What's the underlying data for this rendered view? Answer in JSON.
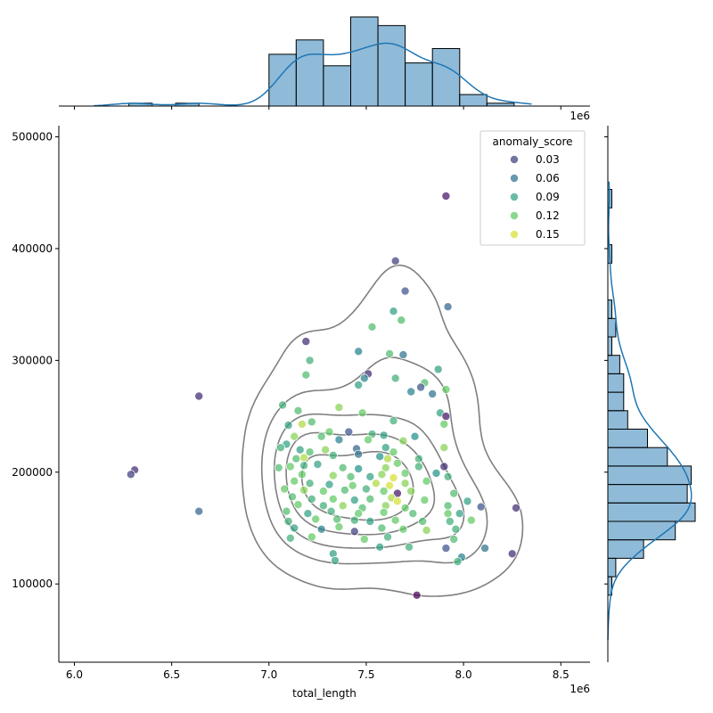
{
  "chart_data": {
    "type": "scatter",
    "title": "",
    "xlabel": "total_length",
    "ylabel": "",
    "x_offset_label": "1e6",
    "xlim": [
      5.92,
      8.65
    ],
    "ylim": [
      30000,
      510000
    ],
    "x_ticks": [
      6.0,
      6.5,
      7.0,
      7.5,
      8.0,
      8.5
    ],
    "x_tick_labels": [
      "6.0",
      "6.5",
      "7.0",
      "7.5",
      "8.0",
      "8.5"
    ],
    "y_ticks": [
      100000,
      200000,
      300000,
      400000,
      500000
    ],
    "y_tick_labels": [
      "100000",
      "200000",
      "300000",
      "400000",
      "500000"
    ],
    "grid": false,
    "legend": {
      "title": "anomaly_score",
      "placement": "top-right",
      "entries": [
        {
          "label": "0.03",
          "value": 0.03,
          "color": "#46327e"
        },
        {
          "label": "0.06",
          "value": 0.06,
          "color": "#365c8d"
        },
        {
          "label": "0.09",
          "value": 0.09,
          "color": "#21918c"
        },
        {
          "label": "0.12",
          "value": 0.12,
          "color": "#3bbb75"
        },
        {
          "label": "0.15",
          "value": 0.15,
          "color": "#d5e21a"
        }
      ]
    },
    "colormap": "viridis",
    "score_range": [
      0.0,
      0.16
    ],
    "points": [
      [
        7.91,
        447000,
        0.01
      ],
      [
        7.65,
        389000,
        0.03
      ],
      [
        7.7,
        362000,
        0.04
      ],
      [
        7.92,
        348000,
        0.05
      ],
      [
        7.64,
        344000,
        0.09
      ],
      [
        7.68,
        336000,
        0.11
      ],
      [
        7.53,
        330000,
        0.11
      ],
      [
        7.19,
        317000,
        0.02
      ],
      [
        7.46,
        308000,
        0.07
      ],
      [
        7.62,
        306000,
        0.11
      ],
      [
        7.69,
        305000,
        0.06
      ],
      [
        7.21,
        300000,
        0.1
      ],
      [
        7.51,
        288000,
        0.02
      ],
      [
        7.87,
        292000,
        0.09
      ],
      [
        7.19,
        287000,
        0.11
      ],
      [
        7.49,
        284000,
        0.07
      ],
      [
        7.65,
        284000,
        0.1
      ],
      [
        7.8,
        280000,
        0.11
      ],
      [
        7.46,
        278000,
        0.09
      ],
      [
        7.78,
        276000,
        0.04
      ],
      [
        7.73,
        272000,
        0.07
      ],
      [
        7.84,
        270000,
        0.06
      ],
      [
        6.64,
        268000,
        0.02
      ],
      [
        7.91,
        274000,
        0.12
      ],
      [
        7.07,
        260000,
        0.1
      ],
      [
        7.36,
        258000,
        0.13
      ],
      [
        7.15,
        255000,
        0.11
      ],
      [
        7.48,
        253000,
        0.12
      ],
      [
        7.88,
        253000,
        0.09
      ],
      [
        7.91,
        250000,
        0.01
      ],
      [
        7.22,
        245000,
        0.11
      ],
      [
        7.64,
        246000,
        0.1
      ],
      [
        7.1,
        242000,
        0.09
      ],
      [
        7.17,
        243000,
        0.14
      ],
      [
        7.9,
        243000,
        0.12
      ],
      [
        7.31,
        236000,
        0.12
      ],
      [
        7.41,
        236000,
        0.04
      ],
      [
        7.53,
        234000,
        0.1
      ],
      [
        7.59,
        233000,
        0.09
      ],
      [
        7.75,
        232000,
        0.08
      ],
      [
        7.13,
        232000,
        0.13
      ],
      [
        7.27,
        232000,
        0.11
      ],
      [
        7.36,
        229000,
        0.07
      ],
      [
        7.51,
        229000,
        0.12
      ],
      [
        7.69,
        228000,
        0.13
      ],
      [
        7.09,
        225000,
        0.09
      ],
      [
        7.06,
        222000,
        0.1
      ],
      [
        7.16,
        220000,
        0.09
      ],
      [
        7.21,
        218000,
        0.11
      ],
      [
        7.29,
        220000,
        0.13
      ],
      [
        7.45,
        221000,
        0.05
      ],
      [
        7.6,
        222000,
        0.09
      ],
      [
        7.64,
        218000,
        0.12
      ],
      [
        7.9,
        222000,
        0.13
      ],
      [
        7.14,
        212000,
        0.11
      ],
      [
        7.18,
        213000,
        0.14
      ],
      [
        7.33,
        215000,
        0.1
      ],
      [
        7.46,
        216000,
        0.06
      ],
      [
        7.57,
        214000,
        0.08
      ],
      [
        7.61,
        212000,
        0.14
      ],
      [
        7.77,
        212000,
        0.1
      ],
      [
        7.11,
        205000,
        0.12
      ],
      [
        7.18,
        206000,
        0.1
      ],
      [
        7.25,
        207000,
        0.09
      ],
      [
        7.38,
        204000,
        0.11
      ],
      [
        7.46,
        203000,
        0.08
      ],
      [
        7.6,
        204000,
        0.13
      ],
      [
        7.66,
        208000,
        0.12
      ],
      [
        7.77,
        205000,
        0.1
      ],
      [
        7.9,
        205000,
        0.02
      ],
      [
        6.31,
        202000,
        0.02
      ],
      [
        6.29,
        198000,
        0.03
      ],
      [
        7.05,
        204000,
        0.11
      ],
      [
        7.17,
        198000,
        0.12
      ],
      [
        7.33,
        197000,
        0.13
      ],
      [
        7.42,
        196000,
        0.11
      ],
      [
        7.52,
        196000,
        0.09
      ],
      [
        7.58,
        198000,
        0.13
      ],
      [
        7.64,
        195000,
        0.15
      ],
      [
        7.7,
        199000,
        0.12
      ],
      [
        7.86,
        199000,
        0.08
      ],
      [
        7.13,
        192000,
        0.12
      ],
      [
        7.21,
        190000,
        0.1
      ],
      [
        7.31,
        189000,
        0.09
      ],
      [
        7.43,
        188000,
        0.12
      ],
      [
        7.55,
        190000,
        0.14
      ],
      [
        7.62,
        188000,
        0.15
      ],
      [
        7.7,
        190000,
        0.13
      ],
      [
        7.81,
        192000,
        0.12
      ],
      [
        7.92,
        196000,
        0.1
      ],
      [
        7.08,
        185000,
        0.12
      ],
      [
        7.18,
        184000,
        0.13
      ],
      [
        7.28,
        183000,
        0.12
      ],
      [
        7.39,
        184000,
        0.11
      ],
      [
        7.5,
        185000,
        0.1
      ],
      [
        7.66,
        181000,
        0.01
      ],
      [
        7.59,
        183000,
        0.12
      ],
      [
        7.73,
        183000,
        0.13
      ],
      [
        7.95,
        181000,
        0.11
      ],
      [
        7.12,
        178000,
        0.11
      ],
      [
        7.22,
        176000,
        0.1
      ],
      [
        7.33,
        176000,
        0.12
      ],
      [
        7.44,
        175000,
        0.09
      ],
      [
        7.52,
        176000,
        0.11
      ],
      [
        7.63,
        177000,
        0.14
      ],
      [
        7.66,
        174000,
        0.15
      ],
      [
        7.8,
        175000,
        0.12
      ],
      [
        8.02,
        174000,
        0.09
      ],
      [
        7.15,
        171000,
        0.12
      ],
      [
        7.28,
        170000,
        0.1
      ],
      [
        7.38,
        170000,
        0.13
      ],
      [
        7.48,
        168000,
        0.11
      ],
      [
        7.6,
        170000,
        0.13
      ],
      [
        7.7,
        168000,
        0.12
      ],
      [
        7.92,
        170000,
        0.11
      ],
      [
        8.09,
        169000,
        0.04
      ],
      [
        8.27,
        168000,
        0.02
      ],
      [
        7.09,
        165000,
        0.11
      ],
      [
        7.2,
        163000,
        0.09
      ],
      [
        7.32,
        165000,
        0.1
      ],
      [
        7.46,
        163000,
        0.12
      ],
      [
        7.59,
        164000,
        0.12
      ],
      [
        7.74,
        163000,
        0.11
      ],
      [
        7.92,
        163000,
        0.12
      ],
      [
        7.98,
        163000,
        0.09
      ],
      [
        6.64,
        165000,
        0.05
      ],
      [
        7.1,
        156000,
        0.1
      ],
      [
        7.24,
        158000,
        0.12
      ],
      [
        7.35,
        158000,
        0.11
      ],
      [
        7.44,
        157000,
        0.1
      ],
      [
        7.52,
        156000,
        0.09
      ],
      [
        7.65,
        157000,
        0.12
      ],
      [
        7.79,
        156000,
        0.11
      ],
      [
        7.93,
        156000,
        0.1
      ],
      [
        8.04,
        157000,
        0.12
      ],
      [
        7.13,
        150000,
        0.09
      ],
      [
        7.27,
        149000,
        0.07
      ],
      [
        7.36,
        151000,
        0.12
      ],
      [
        7.44,
        147000,
        0.03
      ],
      [
        7.58,
        150000,
        0.11
      ],
      [
        7.69,
        149000,
        0.12
      ],
      [
        7.81,
        148000,
        0.13
      ],
      [
        7.96,
        149000,
        0.1
      ],
      [
        7.11,
        141000,
        0.1
      ],
      [
        7.22,
        142000,
        0.12
      ],
      [
        7.49,
        140000,
        0.12
      ],
      [
        7.61,
        142000,
        0.1
      ],
      [
        7.95,
        140000,
        0.11
      ],
      [
        7.57,
        133000,
        0.09
      ],
      [
        7.72,
        133000,
        0.1
      ],
      [
        7.91,
        132000,
        0.04
      ],
      [
        8.11,
        132000,
        0.06
      ],
      [
        7.33,
        127000,
        0.09
      ],
      [
        7.99,
        124000,
        0.07
      ],
      [
        8.25,
        127000,
        0.02
      ],
      [
        7.34,
        121000,
        0.09
      ],
      [
        7.97,
        120000,
        0.1
      ],
      [
        7.76,
        90000,
        0.0
      ]
    ],
    "top_histogram": {
      "bin_edges": [
        6.28,
        6.4,
        6.52,
        6.64,
        6.76,
        6.88,
        7.0,
        7.14,
        7.28,
        7.42,
        7.56,
        7.7,
        7.84,
        7.98,
        8.12,
        8.26
      ],
      "counts": [
        1,
        0,
        1,
        0,
        0,
        0,
        18,
        23,
        14,
        31,
        28,
        15,
        20,
        4,
        1
      ]
    },
    "right_histogram": {
      "bin_edges": [
        90000,
        106500,
        123000,
        139500,
        156000,
        172500,
        189000,
        205500,
        222000,
        238500,
        255000,
        271500,
        288000,
        304500,
        321000,
        337500,
        354000,
        370500,
        387000,
        403500,
        420000,
        436500,
        453000
      ],
      "counts": [
        1,
        2,
        9,
        17,
        22,
        20,
        21,
        15,
        10,
        5,
        4,
        4,
        3,
        1,
        2,
        1,
        0,
        0,
        1,
        0,
        0,
        1
      ]
    },
    "kde_contour_levels": 5
  }
}
